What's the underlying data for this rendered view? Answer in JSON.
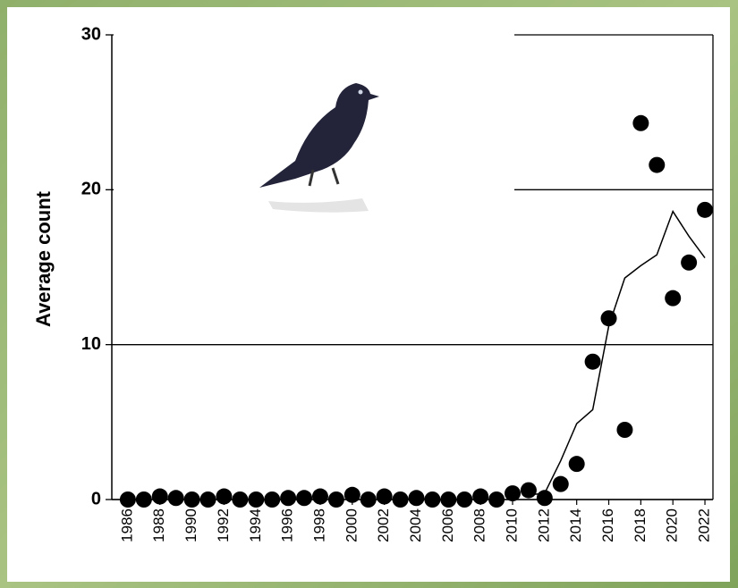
{
  "chart_data": {
    "type": "scatter",
    "y_label": "Average count",
    "x": [
      1986,
      1987,
      1988,
      1989,
      1990,
      1991,
      1992,
      1993,
      1994,
      1995,
      1996,
      1997,
      1998,
      1999,
      2000,
      2001,
      2002,
      2003,
      2004,
      2005,
      2006,
      2007,
      2008,
      2009,
      2010,
      2011,
      2012,
      2013,
      2014,
      2015,
      2016,
      2017,
      2018,
      2019,
      2020,
      2021,
      2022
    ],
    "series": [
      {
        "type": "scatter",
        "color": "#000000",
        "values": [
          0,
          0,
          0.2,
          0.1,
          0,
          0,
          0.2,
          0,
          0,
          0,
          0.1,
          0.1,
          0.2,
          0,
          0.3,
          0,
          0.2,
          0,
          0.1,
          0,
          0,
          0,
          0.2,
          0,
          0.4,
          0.6,
          0.1,
          1.0,
          2.3,
          8.9,
          11.7,
          4.5,
          24.3,
          21.6,
          13.0,
          15.3,
          18.7
        ]
      },
      {
        "type": "line",
        "color": "#000000",
        "values": [
          null,
          null,
          null,
          null,
          null,
          null,
          null,
          null,
          null,
          null,
          null,
          null,
          null,
          null,
          null,
          null,
          null,
          null,
          null,
          null,
          null,
          null,
          null,
          null,
          null,
          0.3,
          0.4,
          2.5,
          4.9,
          5.8,
          11.2,
          14.3,
          15.1,
          15.8,
          18.6,
          17.0,
          15.6
        ]
      }
    ],
    "xlim": [
      1985,
      2022.5
    ],
    "xticks": [
      1986,
      1988,
      1990,
      1992,
      1994,
      1996,
      1998,
      2000,
      2002,
      2004,
      2006,
      2008,
      2010,
      2012,
      2014,
      2016,
      2018,
      2020,
      2022
    ],
    "ylim": [
      0,
      30
    ],
    "yticks": [
      0,
      10,
      20,
      30
    ],
    "grid": true
  }
}
